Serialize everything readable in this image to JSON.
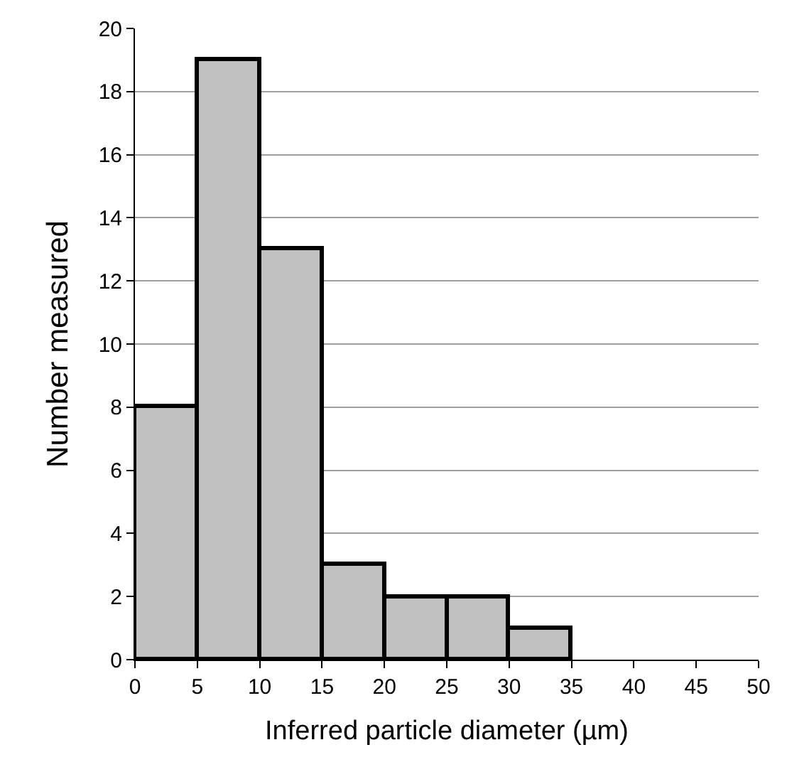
{
  "chart_data": {
    "type": "histogram",
    "xlabel": "Inferred particle diameter (µm)",
    "ylabel": "Number measured",
    "bins": [
      0,
      5,
      10,
      15,
      20,
      25,
      30,
      35
    ],
    "values": [
      8,
      19,
      13,
      3,
      2,
      2,
      1
    ],
    "color": "#c0c0c0",
    "xlim": [
      0,
      50
    ],
    "xticks": [
      0,
      5,
      10,
      15,
      20,
      25,
      30,
      35,
      40,
      45,
      50
    ],
    "ylim": [
      0,
      20
    ],
    "yticks": [
      0,
      2,
      4,
      6,
      8,
      10,
      12,
      14,
      16,
      18,
      20
    ],
    "grid": "y"
  }
}
